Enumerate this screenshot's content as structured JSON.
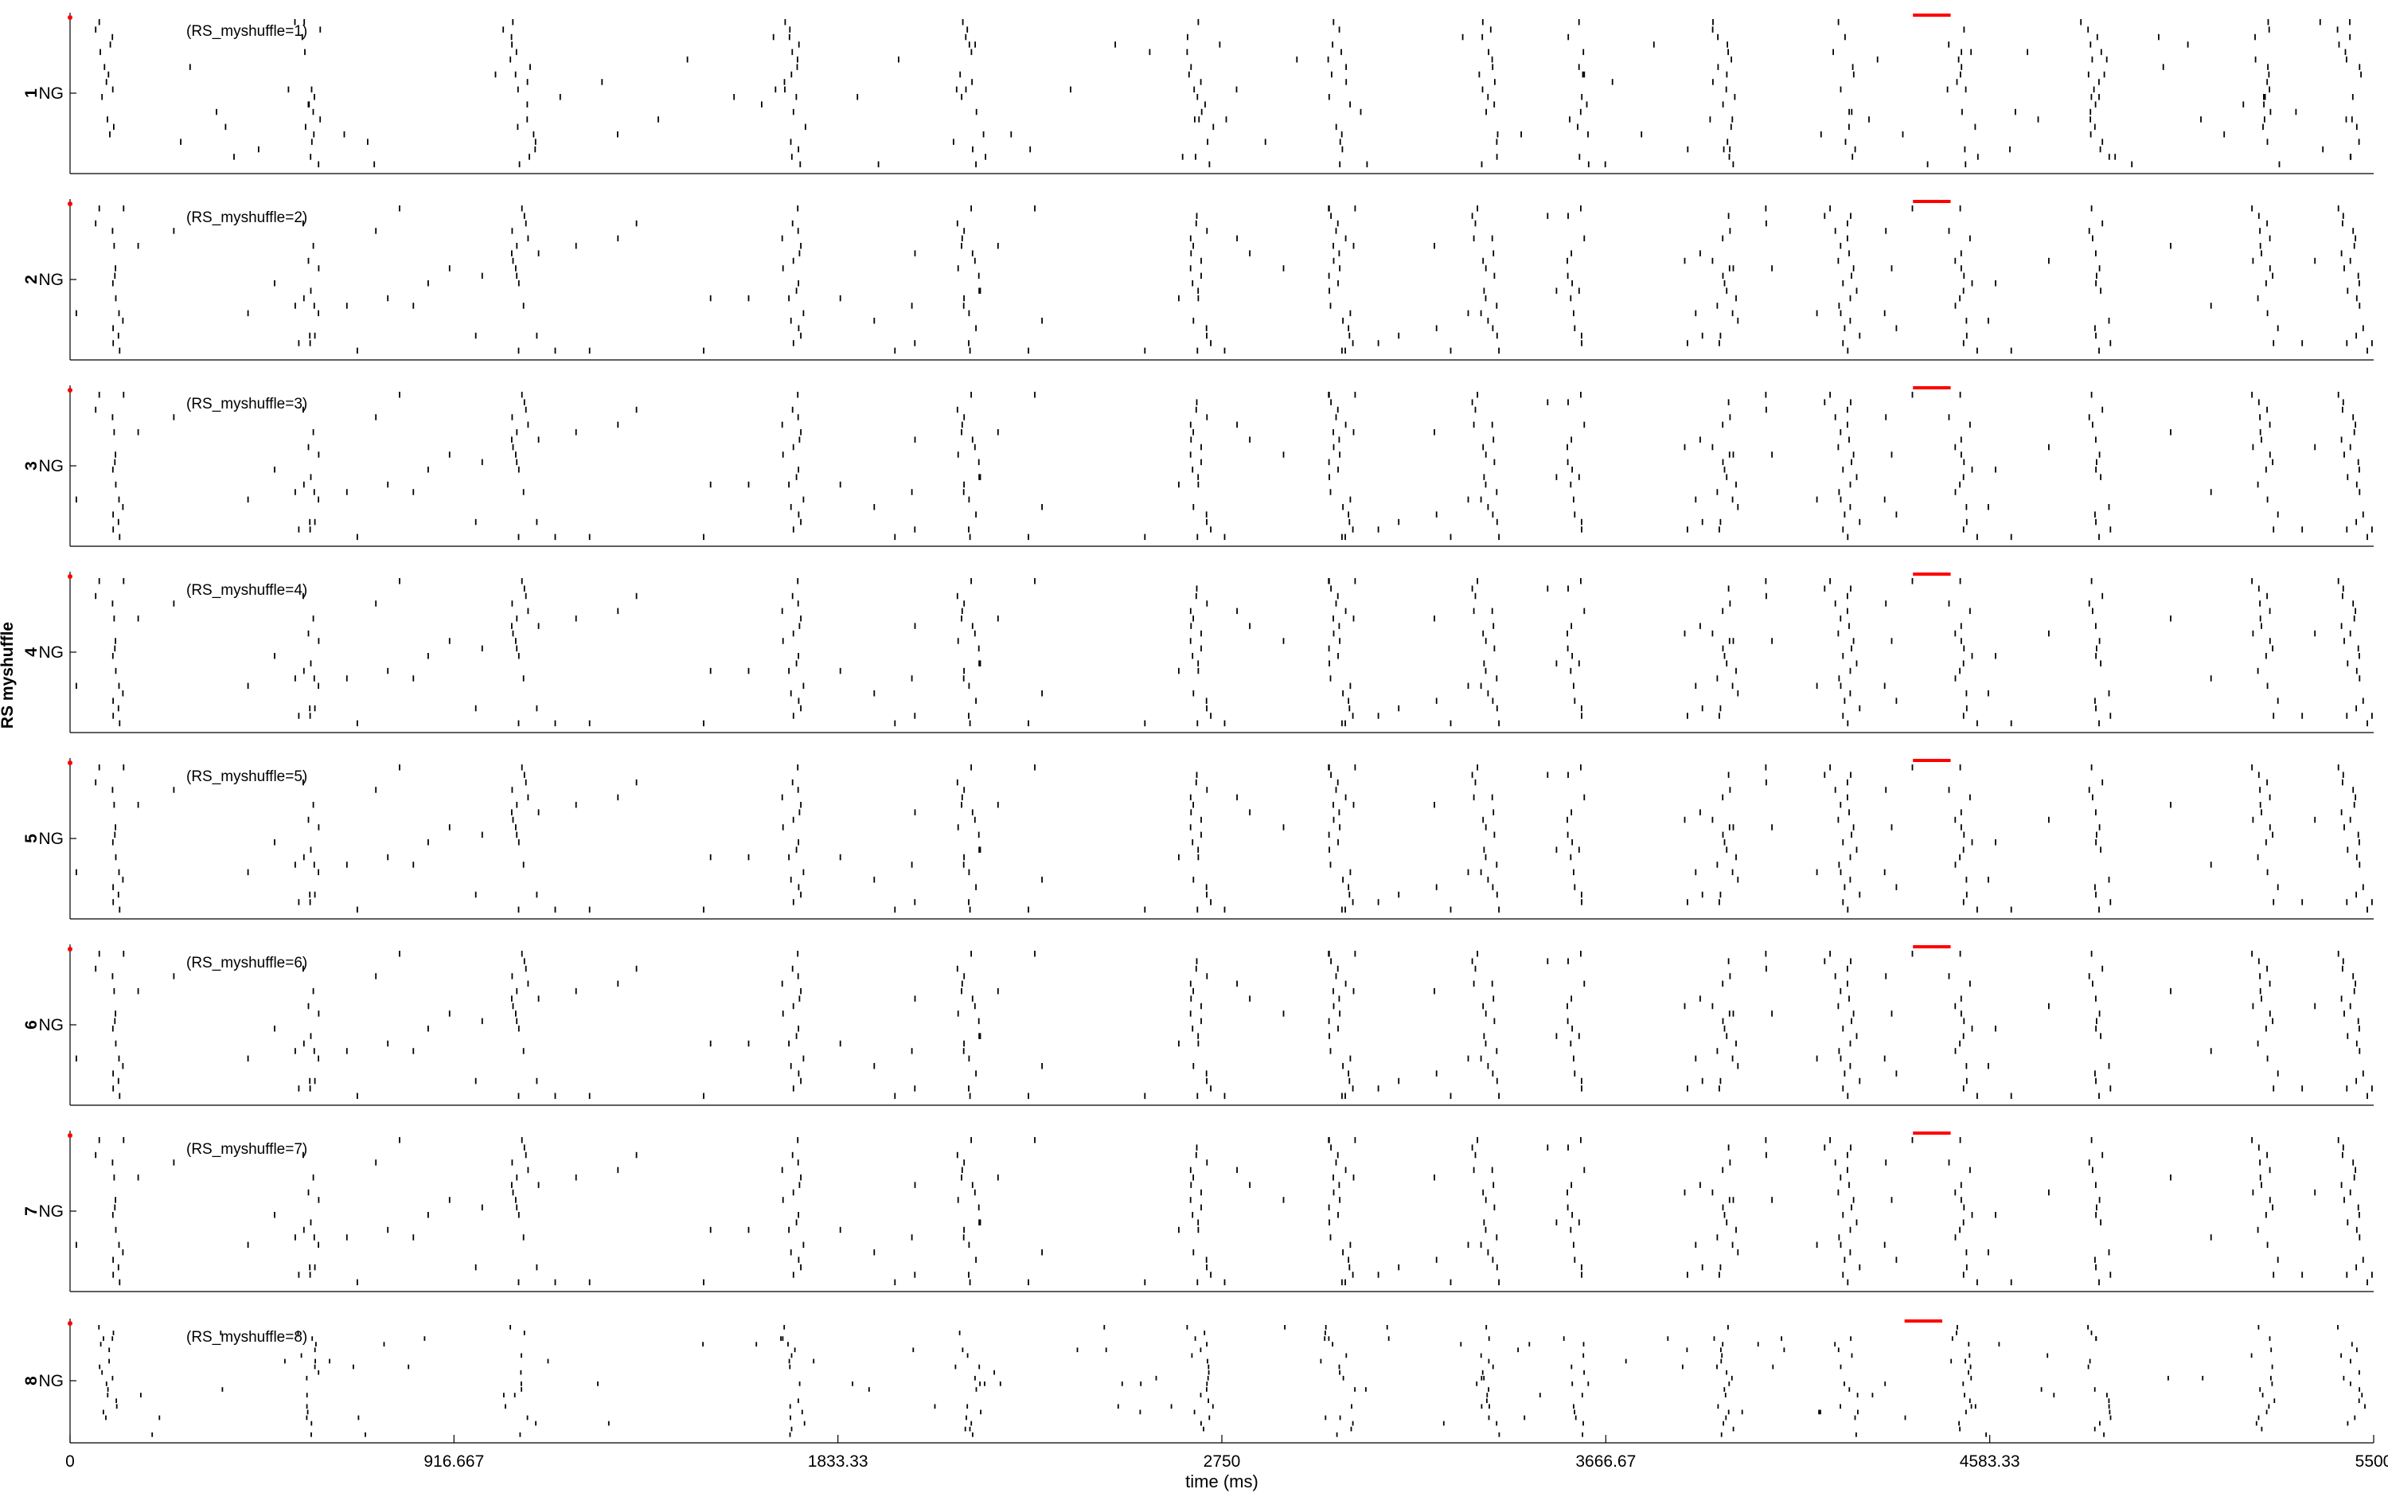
{
  "figure": {
    "y_group_label": "RS myshuffle",
    "x_axis_label": "time (ms)",
    "x_tick_labels": [
      "0",
      "916.667",
      "1833.33",
      "2750",
      "3666.67",
      "4583.33",
      "5500"
    ]
  },
  "chart_data": {
    "type": "scatter",
    "subtype": "spike-raster",
    "xlabel": "time (ms)",
    "xlim": [
      0,
      5500
    ],
    "x_ticks": [
      0,
      916.667,
      1833.33,
      2750,
      3666.67,
      4583.33,
      5500
    ],
    "ylabel": "RS myshuffle",
    "population_label": "NG",
    "neurons_per_panel": 20,
    "colors": {
      "spikes": "#000000",
      "stimulus": "#ff0000",
      "axes": "#000000"
    },
    "population_bursts_ms": [
      95,
      580,
      1080,
      1730,
      2150,
      2700,
      3030,
      3380,
      3600,
      3950,
      4240,
      4520,
      4840,
      5240,
      5450
    ],
    "panels": [
      {
        "index": "1",
        "annotation": "(RS_myshuffle=1)",
        "stimulus_ms": [
          4400,
          4490
        ],
        "seed": 11
      },
      {
        "index": "2",
        "annotation": "(RS_myshuffle=2)",
        "stimulus_ms": [
          4400,
          4490
        ],
        "seed": 22
      },
      {
        "index": "3",
        "annotation": "(RS_myshuffle=3)",
        "stimulus_ms": [
          4400,
          4490
        ],
        "seed": 22
      },
      {
        "index": "4",
        "annotation": "(RS_myshuffle=4)",
        "stimulus_ms": [
          4400,
          4490
        ],
        "seed": 22
      },
      {
        "index": "5",
        "annotation": "(RS_myshuffle=5)",
        "stimulus_ms": [
          4400,
          4490
        ],
        "seed": 22
      },
      {
        "index": "6",
        "annotation": "(RS_myshuffle=6)",
        "stimulus_ms": [
          4400,
          4490
        ],
        "seed": 22
      },
      {
        "index": "7",
        "annotation": "(RS_myshuffle=7)",
        "stimulus_ms": [
          4400,
          4490
        ],
        "seed": 22
      },
      {
        "index": "8",
        "annotation": "(RS_myshuffle=8)",
        "stimulus_ms": [
          4380,
          4470
        ],
        "seed": 88
      }
    ]
  }
}
